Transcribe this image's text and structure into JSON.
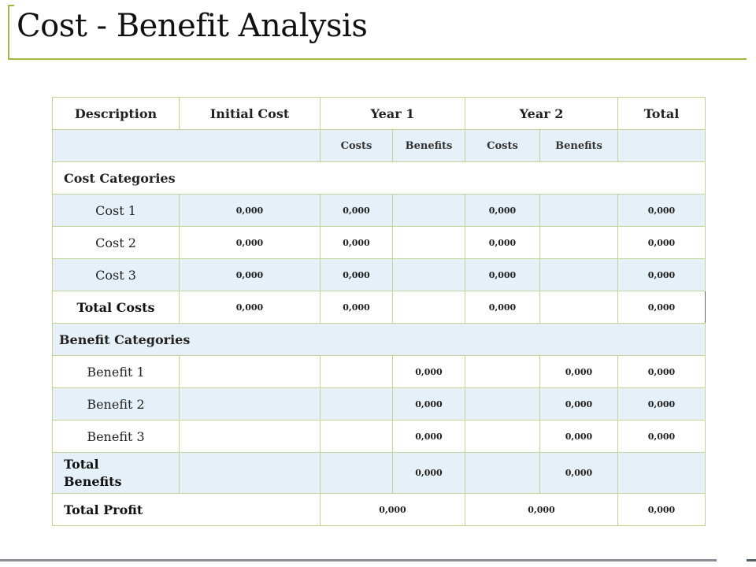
{
  "title": "Cost - Benefit Analysis",
  "headers": {
    "description": "Description",
    "initial_cost": "Initial Cost",
    "year1": "Year 1",
    "year2": "Year 2",
    "total": "Total"
  },
  "subheaders": {
    "costs": "Costs",
    "benefits": "Benefits"
  },
  "sections": {
    "cost_categories": "Cost Categories",
    "benefit_categories": "Benefit Categories"
  },
  "cost_rows": [
    {
      "label": "Cost 1",
      "initial": "0,000",
      "y1_costs": "0,000",
      "y1_benefits": "",
      "y2_costs": "0,000",
      "y2_benefits": "",
      "total": "0,000"
    },
    {
      "label": "Cost 2",
      "initial": "0,000",
      "y1_costs": "0,000",
      "y1_benefits": "",
      "y2_costs": "0,000",
      "y2_benefits": "",
      "total": "0,000"
    },
    {
      "label": "Cost 3",
      "initial": "0,000",
      "y1_costs": "0,000",
      "y1_benefits": "",
      "y2_costs": "0,000",
      "y2_benefits": "",
      "total": "0,000"
    }
  ],
  "total_costs": {
    "label": "Total Costs",
    "initial": "0,000",
    "y1_costs": "0,000",
    "y1_benefits": "",
    "y2_costs": "0,000",
    "y2_benefits": "",
    "total": "0,000"
  },
  "benefit_rows": [
    {
      "label": "Benefit 1",
      "initial": "",
      "y1_costs": "",
      "y1_benefits": "0,000",
      "y2_costs": "",
      "y2_benefits": "0,000",
      "total": "0,000"
    },
    {
      "label": "Benefit 2",
      "initial": "",
      "y1_costs": "",
      "y1_benefits": "0,000",
      "y2_costs": "",
      "y2_benefits": "0,000",
      "total": "0,000"
    },
    {
      "label": "Benefit 3",
      "initial": "",
      "y1_costs": "",
      "y1_benefits": "0,000",
      "y2_costs": "",
      "y2_benefits": "0,000",
      "total": "0,000"
    }
  ],
  "total_benefits": {
    "label_line1": "Total",
    "label_line2": "Benefits",
    "initial": "",
    "y1_costs": "",
    "y1_benefits": "0,000",
    "y2_costs": "",
    "y2_benefits": "0,000",
    "total": ""
  },
  "total_profit": {
    "label": "Total Profit",
    "year1": "0,000",
    "year2": "0,000",
    "total": "0,000"
  },
  "colors": {
    "accent": "#a9b541",
    "row_alt": "#e5f0f8",
    "border": "#c5d396"
  }
}
